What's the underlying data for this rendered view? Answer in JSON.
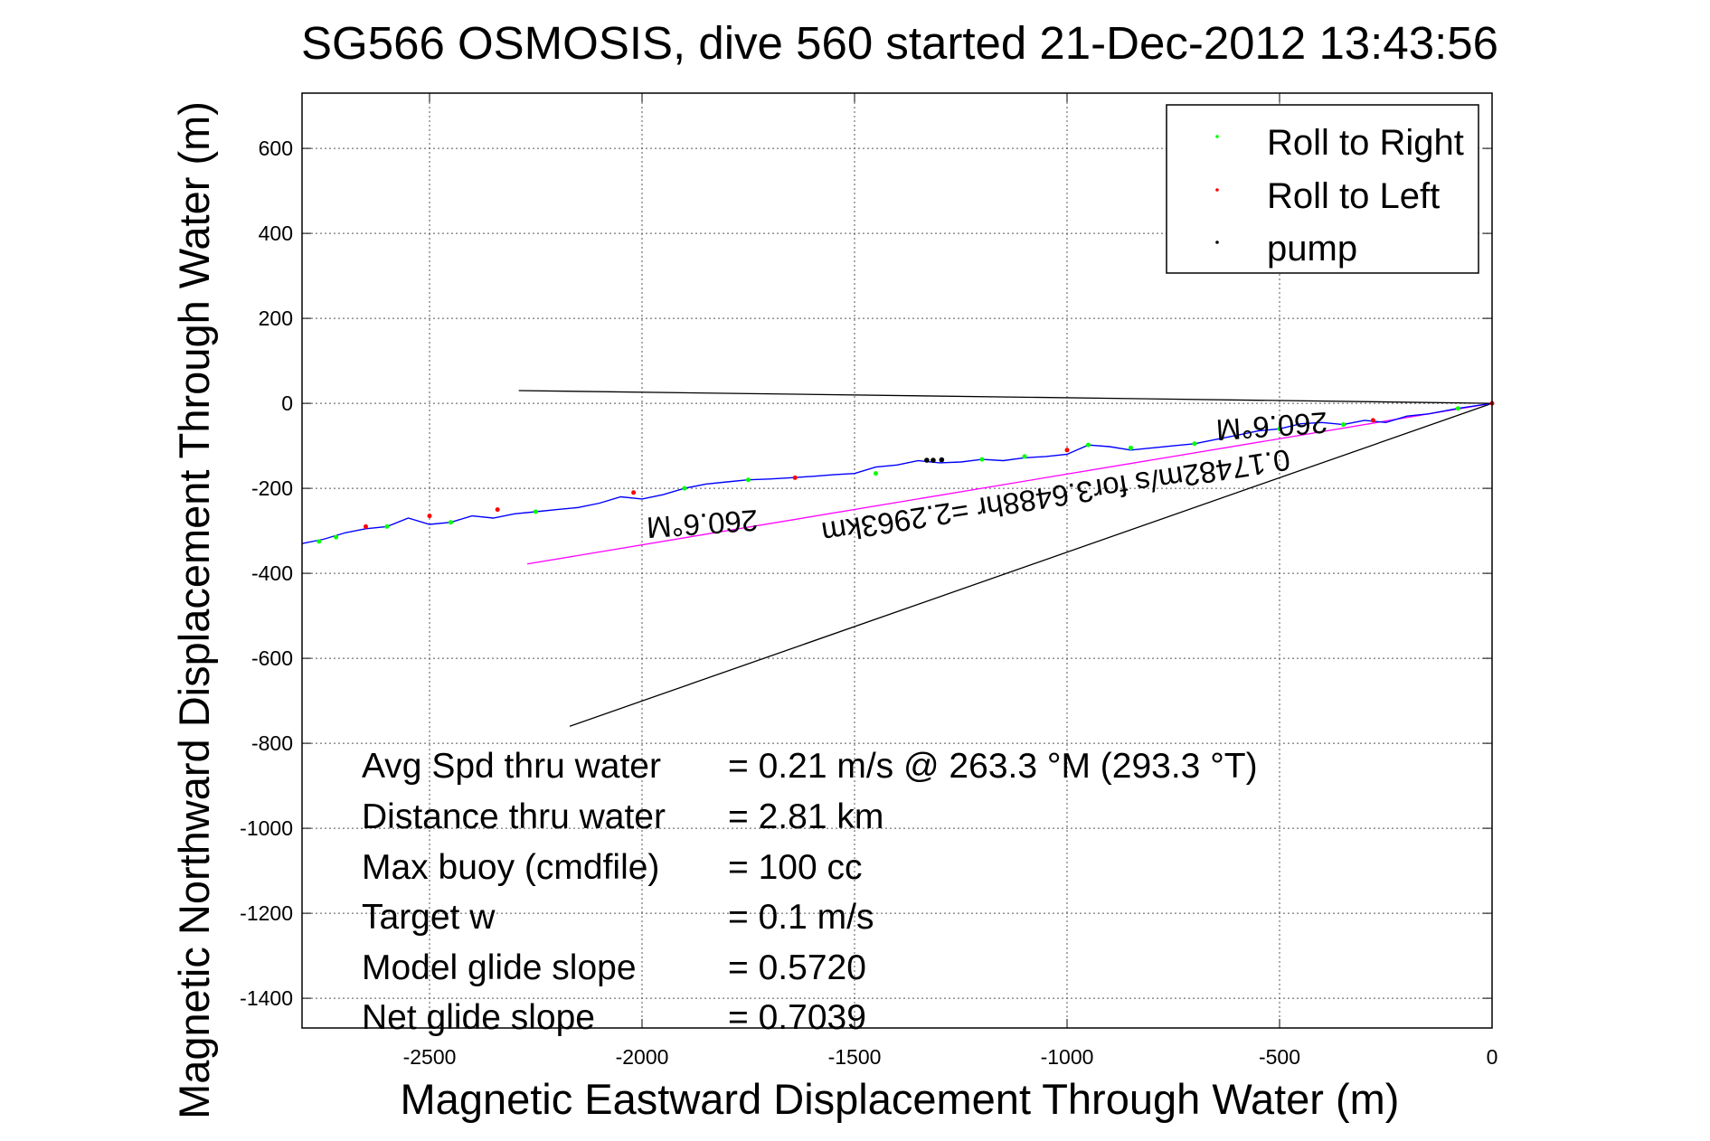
{
  "chart_data": {
    "type": "line",
    "title": "SG566 OSMOSIS, dive 560 started 21-Dec-2012 13:43:56",
    "xlabel": "Magnetic Eastward Displacement Through Water (m)",
    "ylabel": "Magnetic Northward Displacement Through Water (m)",
    "xlim": [
      -2800,
      0
    ],
    "ylim": [
      -1470,
      730
    ],
    "xticks": [
      -2500,
      -2000,
      -1500,
      -1000,
      -500,
      0
    ],
    "yticks": [
      600,
      400,
      200,
      0,
      -200,
      -400,
      -600,
      -800,
      -1000,
      -1200,
      -1400
    ],
    "grid": true,
    "legend_position": "top-right",
    "legend": [
      {
        "label": "Roll to Right",
        "color": "#00ff00"
      },
      {
        "label": "Roll to Left",
        "color": "#ff0000"
      },
      {
        "label": "pump",
        "color": "#000000"
      }
    ],
    "track": {
      "name": "track",
      "color": "#0000ff",
      "x": [
        0,
        -80,
        -150,
        -200,
        -250,
        -300,
        -350,
        -400,
        -450,
        -500,
        -550,
        -600,
        -650,
        -700,
        -750,
        -800,
        -850,
        -900,
        -950,
        -1000,
        -1050,
        -1100,
        -1150,
        -1200,
        -1250,
        -1300,
        -1350,
        -1400,
        -1450,
        -1500,
        -1550,
        -1600,
        -1650,
        -1700,
        -1750,
        -1800,
        -1850,
        -1900,
        -1950,
        -2000,
        -2050,
        -2100,
        -2150,
        -2200,
        -2250,
        -2300,
        -2350,
        -2400,
        -2450,
        -2500,
        -2550,
        -2600,
        -2650,
        -2700,
        -2750,
        -2800
      ],
      "y": [
        0,
        -12,
        -25,
        -30,
        -45,
        -40,
        -50,
        -45,
        -48,
        -60,
        -65,
        -75,
        -85,
        -95,
        -100,
        -105,
        -110,
        -102,
        -98,
        -120,
        -125,
        -128,
        -135,
        -132,
        -138,
        -140,
        -135,
        -145,
        -150,
        -165,
        -168,
        -172,
        -175,
        -178,
        -180,
        -185,
        -190,
        -200,
        -215,
        -225,
        -220,
        -235,
        -245,
        -250,
        -255,
        -260,
        -270,
        -265,
        -280,
        -285,
        -270,
        -290,
        -295,
        -305,
        -320,
        -330
      ]
    },
    "roll_right_points": {
      "x": [
        -80,
        -350,
        -500,
        -700,
        -850,
        -950,
        -1100,
        -1200,
        -1450,
        -1750,
        -1900,
        -2250,
        -2450,
        -2600,
        -2720,
        -2760
      ],
      "y": [
        -12,
        -50,
        -60,
        -95,
        -105,
        -98,
        -125,
        -132,
        -165,
        -180,
        -200,
        -255,
        -280,
        -290,
        -315,
        -325
      ]
    },
    "roll_left_points": {
      "x": [
        0,
        -280,
        -1000,
        -1640,
        -2020,
        -2340,
        -2500,
        -2650
      ],
      "y": [
        0,
        -40,
        -110,
        -175,
        -210,
        -250,
        -265,
        -290
      ]
    },
    "pump_points": {
      "x": [
        -1295,
        -1315,
        -1330
      ],
      "y": [
        -133,
        -134,
        -134
      ]
    },
    "reference_lines": [
      {
        "name": "heading-line",
        "color": "#000000",
        "x": [
          0,
          -2290
        ],
        "y": [
          0,
          30
        ]
      },
      {
        "name": "current-line",
        "color": "#000000",
        "x": [
          0,
          -2170
        ],
        "y": [
          0,
          -760
        ]
      },
      {
        "name": "net-line",
        "color": "#ff00ff",
        "x": [
          0,
          -2270
        ],
        "y": [
          0,
          -378
        ]
      }
    ],
    "annotations": [
      {
        "text": "260.6°M",
        "x": -1860,
        "y": -260,
        "rotation": 176
      },
      {
        "text": "260.6°M",
        "x": -520,
        "y": -30,
        "rotation": 176
      },
      {
        "text": "0.17482m/s for3.6488hr =2.2963km",
        "x": -1030,
        "y": -195,
        "rotation": 171
      }
    ],
    "stats": [
      {
        "label": "Avg Spd thru water",
        "value": "=  0.21 m/s @ 263.3 °M (293.3 °T)"
      },
      {
        "label": "Distance thru water",
        "value": "=  2.81 km"
      },
      {
        "label": "Max buoy (cmdfile)",
        "value": "= 100 cc"
      },
      {
        "label": "Target w",
        "value": "= 0.1 m/s"
      },
      {
        "label": "Model glide slope",
        "value": "= 0.5720"
      },
      {
        "label": "Net glide slope",
        "value": "= 0.7039"
      }
    ]
  }
}
